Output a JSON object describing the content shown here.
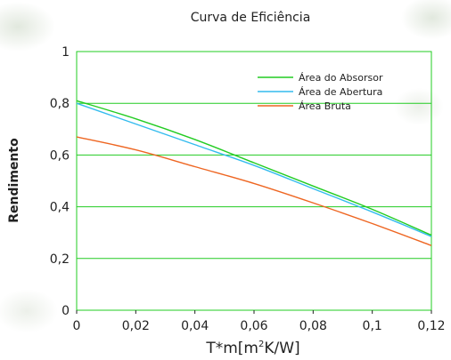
{
  "chart_data": {
    "type": "line",
    "title": "Curva de Eficiência",
    "xlabel": "T*m[m²K/W]",
    "ylabel": "Rendimento",
    "xlim": [
      0,
      0.12
    ],
    "ylim": [
      0,
      1
    ],
    "x_ticks": [
      "0",
      "0,02",
      "0,04",
      "0,06",
      "0,08",
      "0,1",
      "0,12"
    ],
    "y_ticks": [
      "0",
      "0,2",
      "0,4",
      "0,6",
      "0,8",
      "1"
    ],
    "grid": "horizontal",
    "legend_position": "top-right",
    "x": [
      0,
      0.02,
      0.04,
      0.06,
      0.08,
      0.1,
      0.12
    ],
    "series": [
      {
        "name": "Área do Absorsor",
        "color": "#22cc22",
        "values": [
          0.81,
          0.74,
          0.66,
          0.57,
          0.48,
          0.39,
          0.29
        ]
      },
      {
        "name": "Área de Abertura",
        "color": "#33bbee",
        "values": [
          0.8,
          0.72,
          0.64,
          0.56,
          0.47,
          0.38,
          0.285
        ]
      },
      {
        "name": "Área Bruta",
        "color": "#ee6622",
        "values": [
          0.67,
          0.62,
          0.555,
          0.49,
          0.415,
          0.335,
          0.25
        ]
      }
    ]
  },
  "colors": {
    "grid": "#22cc22",
    "frame": "#22cc22",
    "axis": "#222222"
  }
}
